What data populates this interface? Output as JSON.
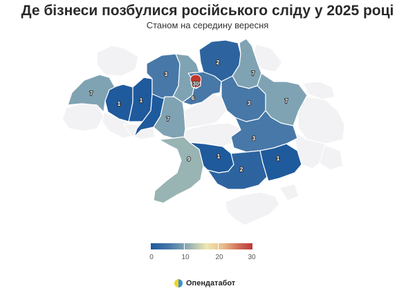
{
  "title": "Де бізнеси позбулися російського сліду у 2025 році",
  "subtitle": "Станом на середину вересня",
  "brand": {
    "name": "Опендатабот",
    "logo_colors": [
      "#f7d51d",
      "#3a8fd8"
    ]
  },
  "legend": {
    "ticks": [
      "0",
      "10",
      "20",
      "30"
    ],
    "colors": [
      "#1f5a9c",
      "#7fa3b3",
      "#eee8b0",
      "#bb3a3a"
    ]
  },
  "colors": {
    "no_data": "#f2f2f4",
    "border": "#ffffff"
  },
  "regions": {
    "volyn": {
      "value": "1"
    },
    "rivne": {
      "value": "3"
    },
    "zhytomyr": {
      "value": "3"
    },
    "kyiv_city": {
      "value": "30"
    },
    "kyiv_oblast": {
      "value": "6"
    },
    "chernihiv": {
      "value": "2"
    },
    "sumy": {
      "value": "7"
    },
    "kharkiv": {
      "value": "7"
    },
    "poltava": {
      "value": "3"
    },
    "lviv": {
      "value": "7"
    },
    "ternopil": {
      "value": "1"
    },
    "khmelnytskyi": {
      "value": "2"
    },
    "vinnytsia": {
      "value": "7"
    },
    "odesa": {
      "value": "9"
    },
    "mykolaiv": {
      "value": "1"
    },
    "dnipropetrovsk": {
      "value": "3"
    },
    "kherson": {
      "value": "2"
    },
    "zaporizhzhia": {
      "value": "1"
    }
  }
}
